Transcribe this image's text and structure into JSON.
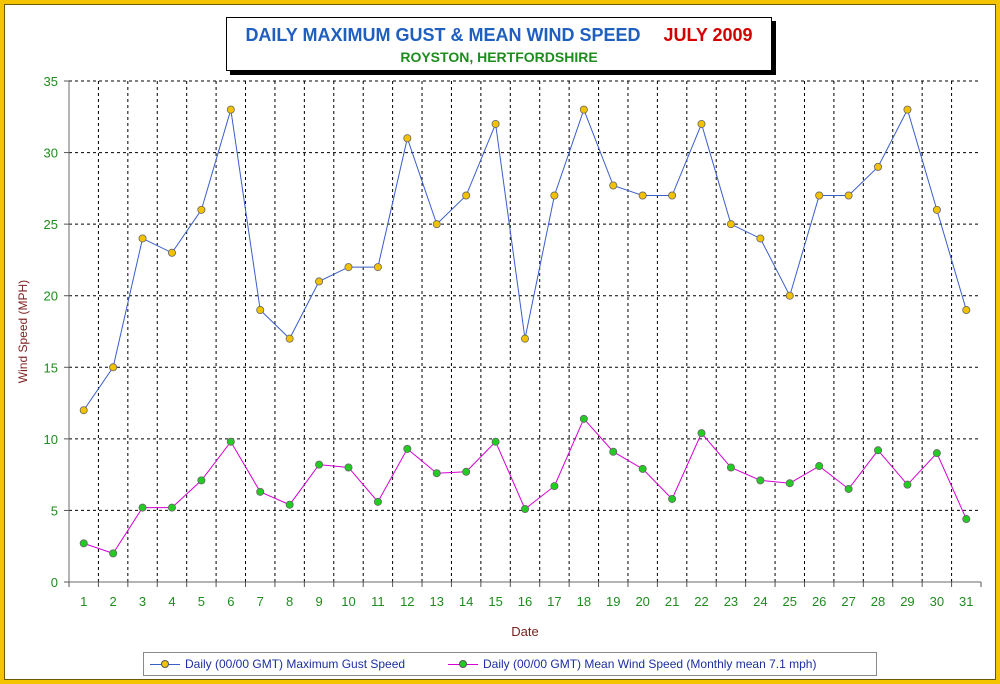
{
  "title": "DAILY MAXIMUM GUST & MEAN WIND SPEED",
  "title_month": "JULY 2009",
  "subtitle": "ROYSTON, HERTFORDSHIRE",
  "colors": {
    "border": "#f5c400",
    "title_main": "#1f5fbf",
    "title_month": "#d40000",
    "subtitle": "#1e8c1e",
    "gust_line": "#3a5ec8",
    "gust_marker": "#f2c200",
    "mean_line": "#d400d4",
    "mean_marker": "#22cc22",
    "axis_label": "#7a1e1e",
    "tick_label": "#1e8c1e"
  },
  "legend": {
    "gust_label": "Daily (00/00 GMT) Maximum Gust Speed",
    "mean_label": "Daily (00/00 GMT) Mean Wind Speed (Monthly mean 7.1 mph)"
  },
  "chart_data": {
    "type": "line",
    "xlabel": "Date",
    "ylabel": "Wind Speed (MPH)",
    "ylim": [
      0,
      35
    ],
    "yticks": [
      0,
      5,
      10,
      15,
      20,
      25,
      30,
      35
    ],
    "grid": true,
    "legend_position": "bottom",
    "categories": [
      "1",
      "2",
      "3",
      "4",
      "5",
      "6",
      "7",
      "8",
      "9",
      "10",
      "11",
      "12",
      "13",
      "14",
      "15",
      "16",
      "17",
      "18",
      "19",
      "20",
      "21",
      "22",
      "23",
      "24",
      "25",
      "26",
      "27",
      "28",
      "29",
      "30",
      "31"
    ],
    "series": [
      {
        "name": "Daily (00/00 GMT) Maximum Gust Speed",
        "values": [
          12,
          15,
          24,
          23,
          26,
          33,
          19,
          17,
          21,
          22,
          22,
          31,
          25,
          27,
          32,
          17,
          27,
          33,
          27.7,
          27,
          27,
          32,
          25,
          24,
          20,
          27,
          27,
          29,
          33,
          26,
          19
        ]
      },
      {
        "name": "Daily (00/00 GMT) Mean Wind Speed (Monthly mean 7.1 mph)",
        "values": [
          2.7,
          2.0,
          5.2,
          5.2,
          7.1,
          9.8,
          6.3,
          5.4,
          8.2,
          8.0,
          5.6,
          9.3,
          7.6,
          7.7,
          9.8,
          5.1,
          6.7,
          11.4,
          9.1,
          7.9,
          5.8,
          10.4,
          8.0,
          7.1,
          6.9,
          8.1,
          6.5,
          9.2,
          6.8,
          9.0,
          4.4
        ]
      }
    ]
  }
}
